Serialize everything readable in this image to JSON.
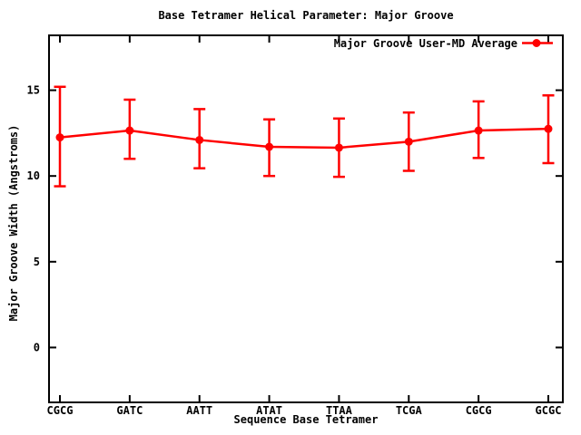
{
  "title": "Base Tetramer Helical Parameter: Major Groove",
  "axes": {
    "x_label": "Sequence Base Tetramer",
    "y_label": "Major Groove Width (Angstroms)"
  },
  "legend": {
    "label": "Major Groove User-MD Average",
    "position": "top-right-inside"
  },
  "colors": {
    "series": "#ff0000",
    "axis": "#000000",
    "background": "#ffffff"
  },
  "chart_data": {
    "type": "line",
    "title": "Base Tetramer Helical Parameter: Major Groove",
    "xlabel": "Sequence Base Tetramer",
    "ylabel": "Major Groove Width (Angstroms)",
    "categories": [
      "CGCG",
      "GATC",
      "AATT",
      "ATAT",
      "TTAA",
      "TCGA",
      "CGCG",
      "GCGC"
    ],
    "series": [
      {
        "name": "Major Groove User-MD Average",
        "values": [
          12.25,
          12.65,
          12.1,
          11.7,
          11.65,
          12.0,
          12.65,
          12.75
        ],
        "err_low": [
          9.4,
          11.0,
          10.45,
          10.0,
          9.95,
          10.3,
          11.05,
          10.75
        ],
        "err_high": [
          15.2,
          14.45,
          13.9,
          13.3,
          13.35,
          13.7,
          14.35,
          14.7
        ],
        "color": "#ff0000",
        "marker": "filled-circle"
      }
    ],
    "yticks": [
      0,
      5,
      10,
      15
    ],
    "ylim": [
      -3.2,
      18.2
    ],
    "grid": false,
    "error_bars": true,
    "legend_position": "top-right-inside"
  }
}
